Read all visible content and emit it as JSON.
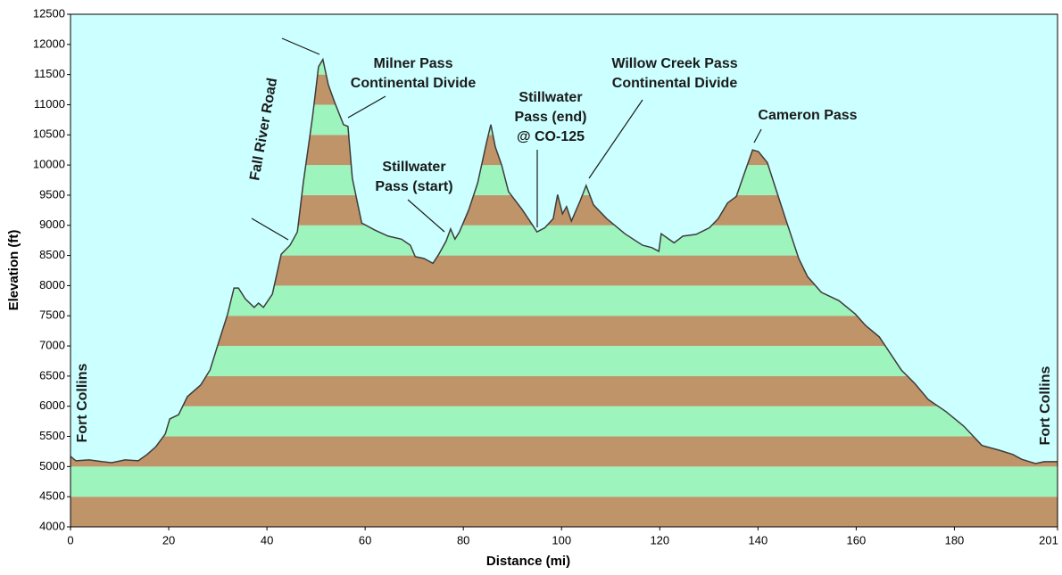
{
  "chart_data": {
    "type": "area",
    "x_label": "Distance   (mi)",
    "y_label": "Elevation (ft)",
    "x": [
      0,
      1.1,
      3.8,
      6.5,
      8.4,
      11.1,
      13.8,
      15.6,
      17.4,
      19.3,
      20.2,
      22,
      23.8,
      26.5,
      28.4,
      30.2,
      32,
      33.3,
      34.2,
      35.6,
      37.4,
      38.3,
      39.3,
      41.1,
      42.9,
      44.7,
      46.2,
      47.4,
      49.3,
      50.5,
      51.4,
      52.5,
      53.8,
      55.6,
      56.5,
      57.4,
      59.3,
      62,
      64.7,
      67.4,
      69.2,
      70.2,
      72,
      73.8,
      75,
      76.5,
      77.4,
      78.3,
      79.2,
      81.1,
      82.9,
      84.7,
      85.6,
      86.5,
      87.8,
      89.2,
      92,
      93.8,
      95,
      96.6,
      98.3,
      99.2,
      100.2,
      101,
      102,
      103.8,
      105,
      106.5,
      109.2,
      112.9,
      116.5,
      118.4,
      119.8,
      120.3,
      122.9,
      124.7,
      127.4,
      130.1,
      131.9,
      133.8,
      135.6,
      137.4,
      138.9,
      140.1,
      141.9,
      143.8,
      145.6,
      148.3,
      150.1,
      152.9,
      156.5,
      159.8,
      161.9,
      164.7,
      167.4,
      169.2,
      171.9,
      174.7,
      178.3,
      181.9,
      185.6,
      189.2,
      191.9,
      193.7,
      196.5,
      198.3,
      201
    ],
    "values": [
      5170,
      5095,
      5110,
      5080,
      5065,
      5110,
      5095,
      5200,
      5330,
      5540,
      5790,
      5860,
      6160,
      6350,
      6600,
      7070,
      7530,
      7960,
      7960,
      7780,
      7640,
      7710,
      7640,
      7860,
      8520,
      8670,
      8890,
      9700,
      10810,
      11630,
      11750,
      11330,
      11040,
      10670,
      10640,
      9780,
      9040,
      8920,
      8820,
      8770,
      8670,
      8480,
      8450,
      8370,
      8520,
      8740,
      8940,
      8770,
      8890,
      9260,
      9700,
      10370,
      10670,
      10300,
      10000,
      9560,
      9260,
      9040,
      8890,
      8960,
      9110,
      9510,
      9190,
      9310,
      9070,
      9410,
      9660,
      9340,
      9110,
      8860,
      8670,
      8630,
      8570,
      8860,
      8710,
      8820,
      8850,
      8960,
      9110,
      9370,
      9480,
      9900,
      10250,
      10220,
      10040,
      9560,
      9110,
      8450,
      8150,
      7890,
      7750,
      7530,
      7340,
      7150,
      6820,
      6600,
      6380,
      6110,
      5910,
      5670,
      5350,
      5270,
      5200,
      5120,
      5050,
      5080,
      5080
    ],
    "xlim": [
      0,
      201
    ],
    "xticks": [
      0,
      20,
      40,
      60,
      80,
      100,
      120,
      140,
      160,
      180,
      201
    ],
    "ylim": [
      4000,
      12500
    ],
    "yticks": [
      4000,
      4500,
      5000,
      5500,
      6000,
      6500,
      7000,
      7500,
      8000,
      8500,
      9000,
      9500,
      10000,
      10500,
      11000,
      11500,
      12000,
      12500
    ],
    "band_colors": [
      "#c09469",
      "#9df5bd"
    ],
    "line_color": "#3c3c3c",
    "background": "#ccffff",
    "annotations": [
      {
        "lines": [
          "Fort Collins"
        ]
      },
      {
        "lines": [
          "Fall River Road"
        ]
      },
      {
        "lines": [
          "Milner Pass",
          "Continental Divide"
        ]
      },
      {
        "lines": [
          "Stillwater",
          "Pass (start)"
        ]
      },
      {
        "lines": [
          "Stillwater",
          "Pass (end)",
          "@ CO-125"
        ]
      },
      {
        "lines": [
          "Willow Creek Pass",
          "Continental Divide"
        ]
      },
      {
        "lines": [
          "Cameron Pass"
        ]
      },
      {
        "lines": [
          "Fort Collins"
        ]
      }
    ]
  }
}
